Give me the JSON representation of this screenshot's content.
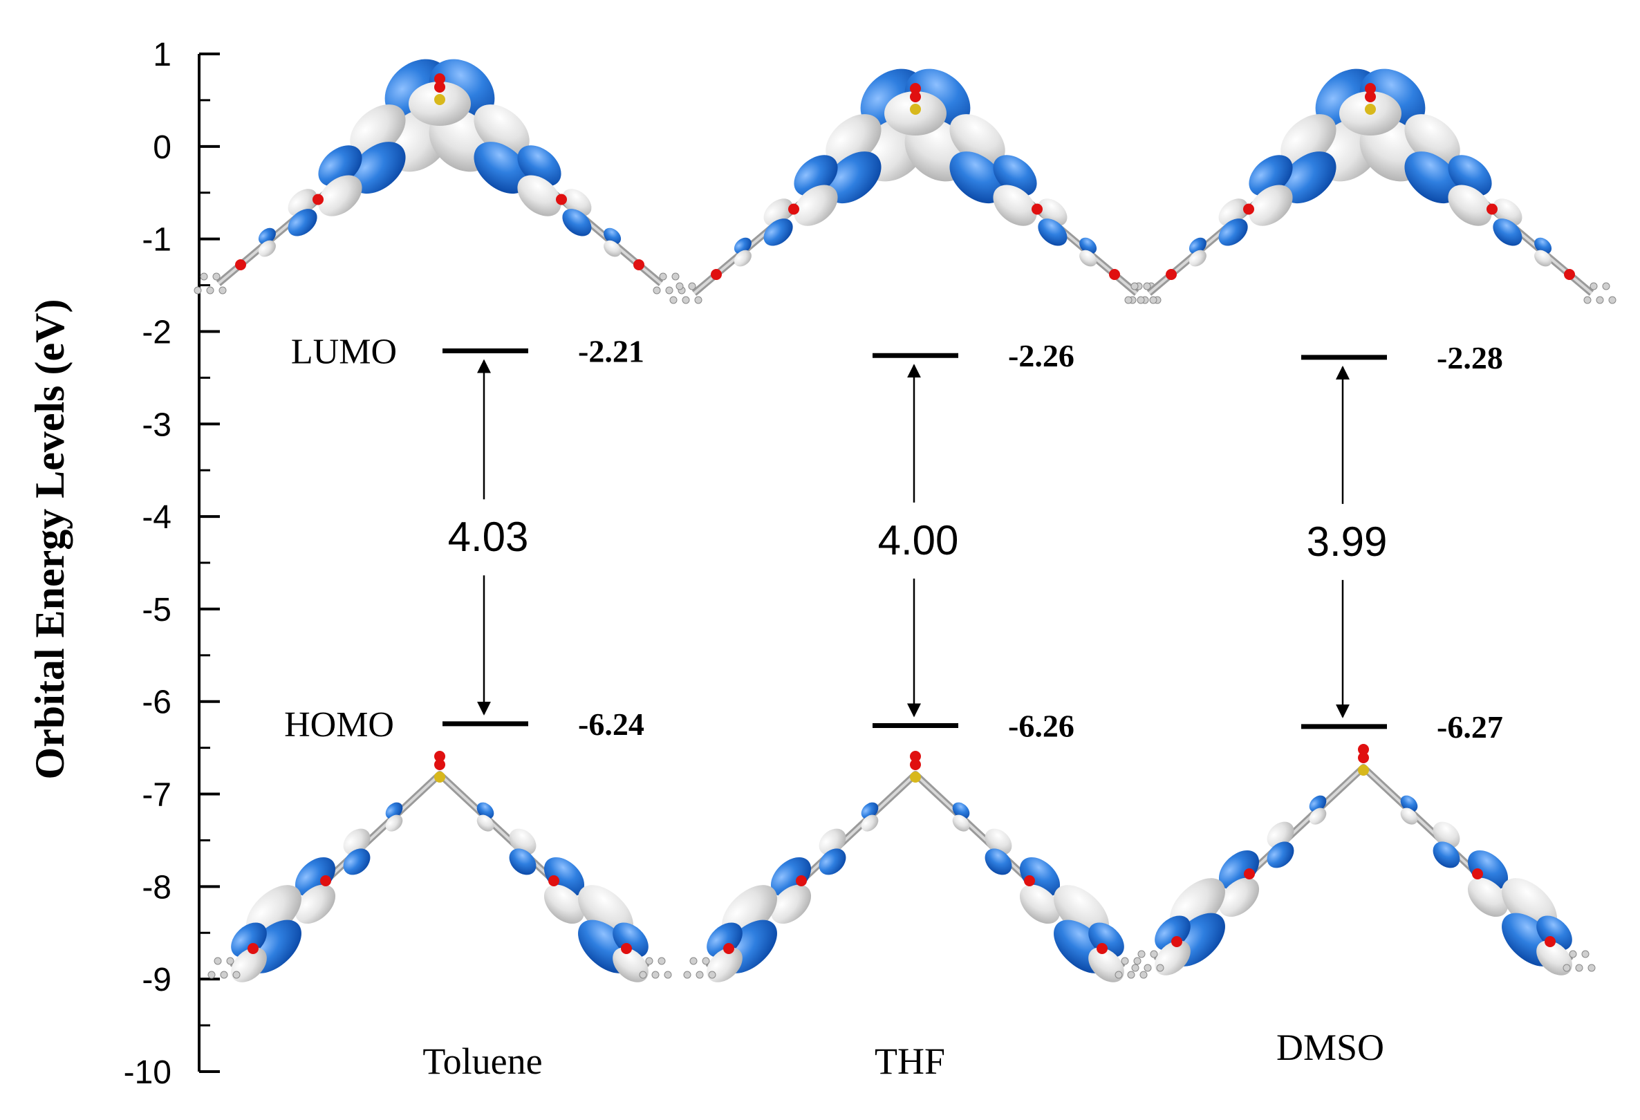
{
  "chart_data": {
    "type": "energy-level-diagram",
    "ylabel": "Orbital Energy Levels (eV)",
    "ylim": [
      -10,
      1
    ],
    "yticks": [
      1,
      0,
      -1,
      -2,
      -3,
      -4,
      -5,
      -6,
      -7,
      -8,
      -9,
      -10
    ],
    "level_labels": {
      "lumo": "LUMO",
      "homo": "HOMO"
    },
    "categories": [
      "Toluene",
      "THF",
      "DMSO"
    ],
    "lumo": [
      -2.21,
      -2.26,
      -2.28
    ],
    "homo": [
      -6.24,
      -6.26,
      -6.27
    ],
    "gap": [
      4.03,
      4.0,
      3.99
    ],
    "lumo_text": [
      "-2.21",
      "-2.26",
      "-2.28"
    ],
    "homo_text": [
      "-6.24",
      "-6.26",
      "-6.27"
    ],
    "gap_text": [
      "4.03",
      "4.00",
      "3.99"
    ],
    "colors": {
      "orbital_blue": "#1f6fd1",
      "orbital_gray": "#e2e2e2",
      "atom_red": "#e01010",
      "atom_yellow": "#d8b81c"
    }
  }
}
